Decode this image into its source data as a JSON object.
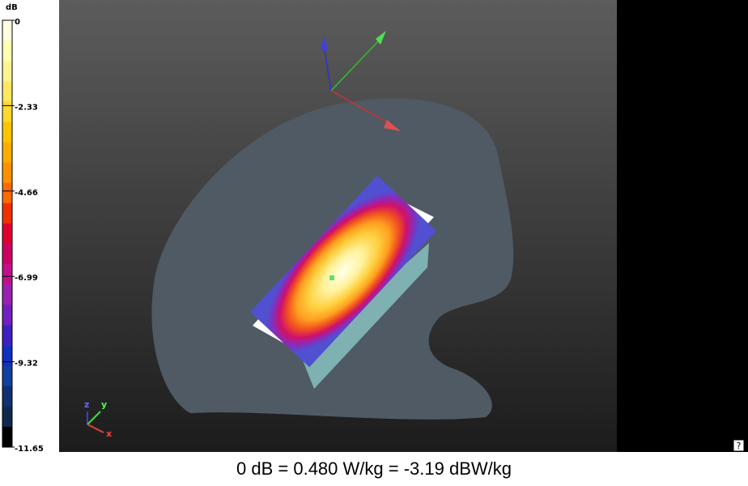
{
  "colorbar": {
    "unit": "dB",
    "ticks": [
      "0",
      "-2.33",
      "-4.66",
      "-6.99",
      "-9.32",
      "-11.65"
    ]
  },
  "axes_triad": {
    "labels": [
      "z",
      "y",
      "x"
    ]
  },
  "help_icon": "?",
  "caption": "0 dB = 0.480 W/kg = -3.19 dBW/kg"
}
